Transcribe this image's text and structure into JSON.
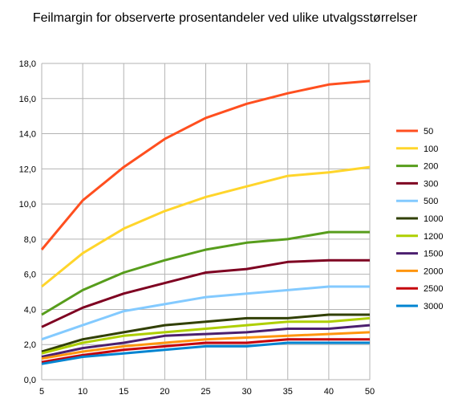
{
  "chart_data": {
    "type": "line",
    "title": "Feilmargin for observerte prosentandeler ved ulike utvalgsstørrelser",
    "xlabel": "",
    "ylabel": "",
    "x": [
      5,
      10,
      15,
      20,
      25,
      30,
      35,
      40,
      50
    ],
    "x_tick_labels": [
      "5",
      "10",
      "15",
      "20",
      "25",
      "30",
      "35",
      "40",
      "50"
    ],
    "ylim": [
      0,
      18
    ],
    "y_ticks": [
      0,
      2,
      4,
      6,
      8,
      10,
      12,
      14,
      16,
      18
    ],
    "y_tick_labels": [
      "0,0",
      "2,0",
      "4,0",
      "6,0",
      "8,0",
      "10,0",
      "12,0",
      "14,0",
      "16,0",
      "18,0"
    ],
    "grid": "horizontal and vertical",
    "legend_position": "right",
    "series": [
      {
        "name": "50",
        "color": "#ff4f1f",
        "values": [
          7.4,
          10.2,
          12.1,
          13.7,
          14.9,
          15.7,
          16.3,
          16.8,
          17.0
        ]
      },
      {
        "name": "100",
        "color": "#ffd52b",
        "values": [
          5.3,
          7.2,
          8.6,
          9.6,
          10.4,
          11.0,
          11.6,
          11.8,
          12.1
        ]
      },
      {
        "name": "200",
        "color": "#579d1c",
        "values": [
          3.7,
          5.1,
          6.1,
          6.8,
          7.4,
          7.8,
          8.0,
          8.4,
          8.4
        ]
      },
      {
        "name": "300",
        "color": "#7e0021",
        "values": [
          3.0,
          4.1,
          4.9,
          5.5,
          6.1,
          6.3,
          6.7,
          6.8,
          6.8
        ]
      },
      {
        "name": "500",
        "color": "#83caff",
        "values": [
          2.3,
          3.1,
          3.9,
          4.3,
          4.7,
          4.9,
          5.1,
          5.3,
          5.3
        ]
      },
      {
        "name": "1000",
        "color": "#314004",
        "values": [
          1.6,
          2.3,
          2.7,
          3.1,
          3.3,
          3.5,
          3.5,
          3.7,
          3.7
        ]
      },
      {
        "name": "1200",
        "color": "#aecf00",
        "values": [
          1.5,
          2.1,
          2.5,
          2.7,
          2.9,
          3.1,
          3.3,
          3.3,
          3.5
        ]
      },
      {
        "name": "1500",
        "color": "#4b1f6f",
        "values": [
          1.3,
          1.8,
          2.1,
          2.5,
          2.6,
          2.7,
          2.9,
          2.9,
          3.1
        ]
      },
      {
        "name": "2000",
        "color": "#ff950e",
        "values": [
          1.2,
          1.6,
          1.9,
          2.1,
          2.3,
          2.4,
          2.5,
          2.6,
          2.7
        ]
      },
      {
        "name": "2500",
        "color": "#c5000b",
        "values": [
          1.0,
          1.4,
          1.7,
          1.9,
          2.1,
          2.1,
          2.3,
          2.3,
          2.3
        ]
      },
      {
        "name": "3000",
        "color": "#0084d1",
        "values": [
          0.9,
          1.3,
          1.5,
          1.7,
          1.9,
          1.9,
          2.1,
          2.1,
          2.1
        ]
      }
    ]
  }
}
